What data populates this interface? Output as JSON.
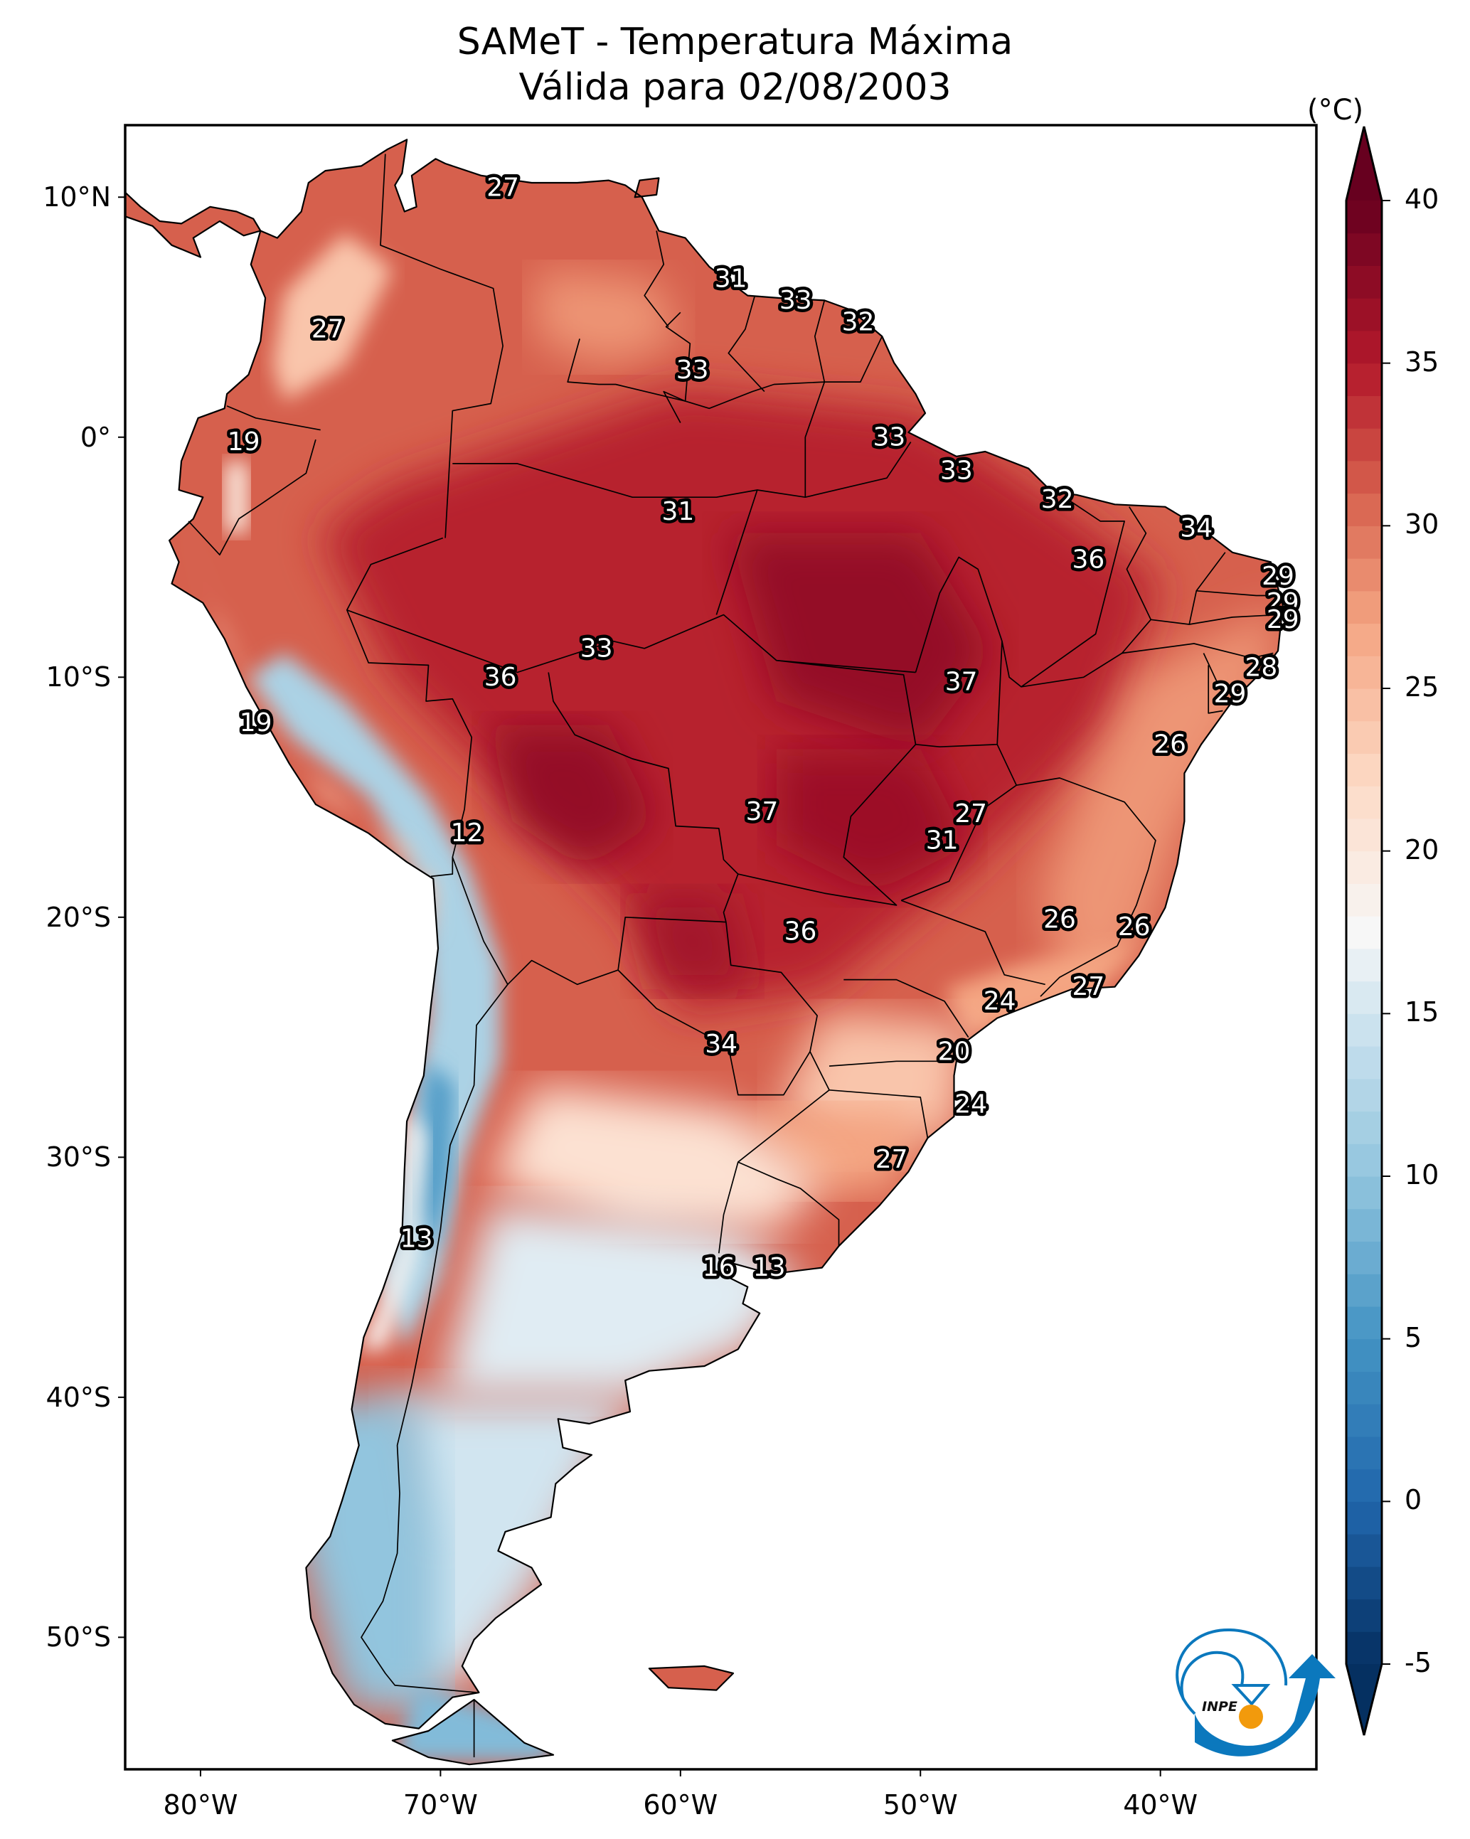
{
  "title": {
    "line1": "SAMeT - Temperatura Máxima",
    "line2": "Válida para 02/08/2003"
  },
  "map": {
    "extent_lon": [
      -83.14,
      -33.5
    ],
    "extent_lat": [
      -55.5,
      13.0
    ],
    "x_ticks": [
      {
        "lon": -80,
        "label": "80°W"
      },
      {
        "lon": -70,
        "label": "70°W"
      },
      {
        "lon": -60,
        "label": "60°W"
      },
      {
        "lon": -50,
        "label": "50°W"
      },
      {
        "lon": -40,
        "label": "40°W"
      }
    ],
    "y_ticks": [
      {
        "lat": 10,
        "label": "10°N"
      },
      {
        "lat": 0,
        "label": "0°"
      },
      {
        "lat": -10,
        "label": "10°S"
      },
      {
        "lat": -20,
        "label": "20°S"
      },
      {
        "lat": -30,
        "label": "30°S"
      },
      {
        "lat": -40,
        "label": "40°S"
      },
      {
        "lat": -50,
        "label": "50°S"
      }
    ],
    "station_labels": [
      {
        "value": "27",
        "lon": -67.4,
        "lat": 10.4
      },
      {
        "value": "27",
        "lon": -74.7,
        "lat": 4.5
      },
      {
        "value": "19",
        "lon": -78.2,
        "lat": -0.2
      },
      {
        "value": "31",
        "lon": -57.9,
        "lat": 6.6
      },
      {
        "value": "33",
        "lon": -55.2,
        "lat": 5.7
      },
      {
        "value": "32",
        "lon": -52.6,
        "lat": 4.8
      },
      {
        "value": "33",
        "lon": -59.5,
        "lat": 2.8
      },
      {
        "value": "33",
        "lon": -51.3,
        "lat": 0.0
      },
      {
        "value": "33",
        "lon": -48.5,
        "lat": -1.4
      },
      {
        "value": "32",
        "lon": -44.3,
        "lat": -2.6
      },
      {
        "value": "31",
        "lon": -60.1,
        "lat": -3.1
      },
      {
        "value": "34",
        "lon": -38.5,
        "lat": -3.8
      },
      {
        "value": "36",
        "lon": -43.0,
        "lat": -5.1
      },
      {
        "value": "29",
        "lon": -35.1,
        "lat": -5.8
      },
      {
        "value": "29",
        "lon": -34.9,
        "lat": -6.9
      },
      {
        "value": "29",
        "lon": -34.9,
        "lat": -7.6
      },
      {
        "value": "28",
        "lon": -35.8,
        "lat": -9.6
      },
      {
        "value": "29",
        "lon": -37.1,
        "lat": -10.7
      },
      {
        "value": "33",
        "lon": -63.5,
        "lat": -8.8
      },
      {
        "value": "36",
        "lon": -67.5,
        "lat": -10.0
      },
      {
        "value": "37",
        "lon": -48.3,
        "lat": -10.2
      },
      {
        "value": "19",
        "lon": -77.7,
        "lat": -11.9
      },
      {
        "value": "26",
        "lon": -39.6,
        "lat": -12.8
      },
      {
        "value": "37",
        "lon": -56.6,
        "lat": -15.6
      },
      {
        "value": "27",
        "lon": -47.9,
        "lat": -15.7
      },
      {
        "value": "31",
        "lon": -49.1,
        "lat": -16.8
      },
      {
        "value": "12",
        "lon": -68.9,
        "lat": -16.5
      },
      {
        "value": "36",
        "lon": -55.0,
        "lat": -20.6
      },
      {
        "value": "26",
        "lon": -44.2,
        "lat": -20.1
      },
      {
        "value": "26",
        "lon": -41.1,
        "lat": -20.4
      },
      {
        "value": "27",
        "lon": -43.0,
        "lat": -22.9
      },
      {
        "value": "24",
        "lon": -46.7,
        "lat": -23.5
      },
      {
        "value": "34",
        "lon": -58.3,
        "lat": -25.3
      },
      {
        "value": "20",
        "lon": -48.6,
        "lat": -25.6
      },
      {
        "value": "24",
        "lon": -47.9,
        "lat": -27.8
      },
      {
        "value": "27",
        "lon": -51.2,
        "lat": -30.1
      },
      {
        "value": "13",
        "lon": -71.0,
        "lat": -33.4
      },
      {
        "value": "16",
        "lon": -58.4,
        "lat": -34.6
      },
      {
        "value": "13",
        "lon": -56.3,
        "lat": -34.6
      }
    ]
  },
  "colorbar": {
    "unit": "(°C)",
    "min": -5,
    "max": 40,
    "extend": "both",
    "ticks": [
      {
        "value": 40,
        "label": "40"
      },
      {
        "value": 35,
        "label": "35"
      },
      {
        "value": 30,
        "label": "30"
      },
      {
        "value": 25,
        "label": "25"
      },
      {
        "value": 20,
        "label": "20"
      },
      {
        "value": 15,
        "label": "15"
      },
      {
        "value": 10,
        "label": "10"
      },
      {
        "value": 5,
        "label": "5"
      },
      {
        "value": 0,
        "label": "0"
      },
      {
        "value": -5,
        "label": "-5"
      }
    ],
    "colormap_stops": [
      {
        "value": -5,
        "color": "#053061"
      },
      {
        "value": 0,
        "color": "#2166ac"
      },
      {
        "value": 5,
        "color": "#4393c3"
      },
      {
        "value": 10,
        "color": "#92c5de"
      },
      {
        "value": 15,
        "color": "#d1e5f0"
      },
      {
        "value": 17.5,
        "color": "#f7f7f7"
      },
      {
        "value": 22,
        "color": "#fddbc7"
      },
      {
        "value": 27,
        "color": "#f4a582"
      },
      {
        "value": 31,
        "color": "#d6604d"
      },
      {
        "value": 35,
        "color": "#b2182b"
      },
      {
        "value": 40,
        "color": "#67001f"
      }
    ]
  },
  "logo": {
    "text": "INPE",
    "colors": {
      "blue": "#0b78bd",
      "orange": "#f29a0c"
    }
  }
}
